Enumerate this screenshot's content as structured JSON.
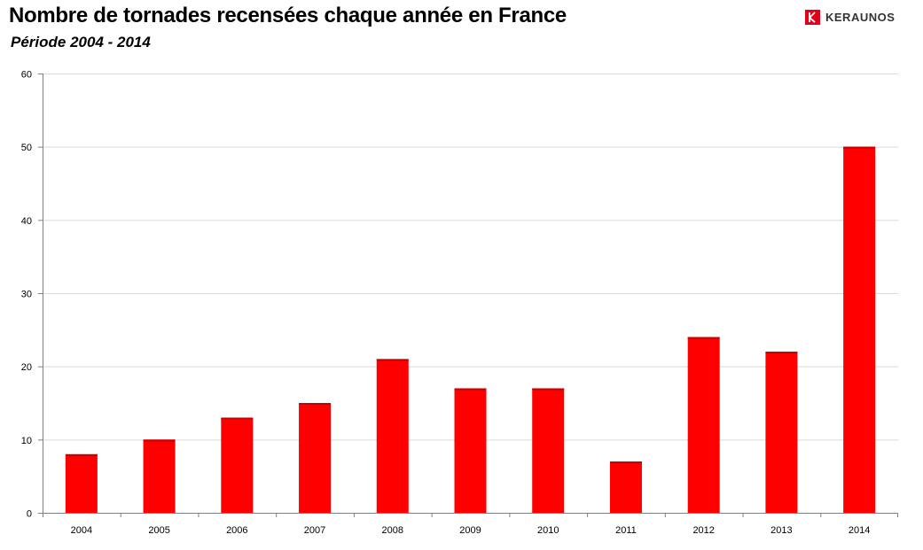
{
  "header": {
    "title": "Nombre de tornades recensées chaque année en France",
    "subtitle": "Période 2004 - 2014",
    "logo_text": "KERAUNOS"
  },
  "colors": {
    "bar": "#ff0000",
    "bar_shadow": "#c80000",
    "logo": "#e3001b",
    "grid": "#d9d9d9",
    "axis": "#808080"
  },
  "chart_data": {
    "type": "bar",
    "title": "Nombre de tornades recensées chaque année en France",
    "subtitle": "Période 2004 - 2014",
    "xlabel": "",
    "ylabel": "",
    "categories": [
      "2004",
      "2005",
      "2006",
      "2007",
      "2008",
      "2009",
      "2010",
      "2011",
      "2012",
      "2013",
      "2014"
    ],
    "values": [
      8,
      10,
      13,
      15,
      21,
      17,
      17,
      7,
      24,
      22,
      50
    ],
    "ylim": [
      0,
      60
    ],
    "yticks": [
      0,
      10,
      20,
      30,
      40,
      50,
      60
    ],
    "grid": true,
    "legend": "none"
  }
}
